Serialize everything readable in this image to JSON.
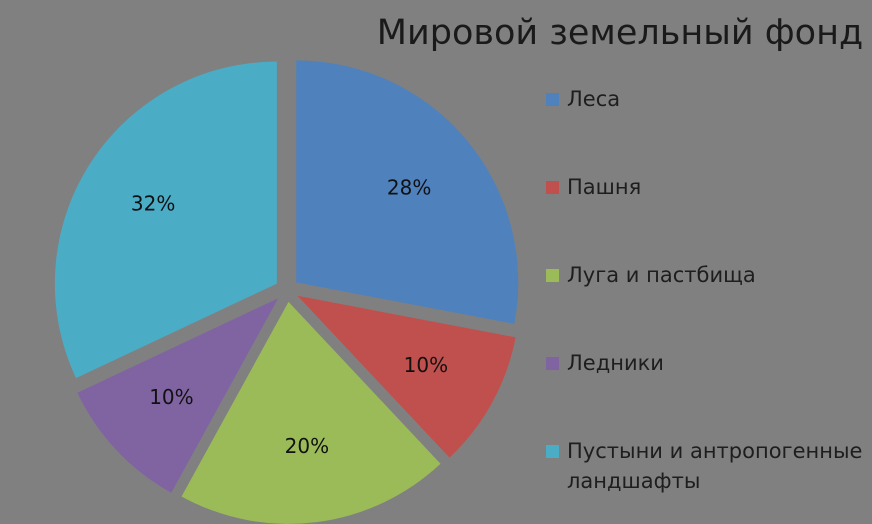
{
  "chart_data": {
    "type": "pie",
    "title": "Мировой земельный фонд",
    "categories": [
      "Леса",
      "Пашня",
      "Луга и пастбища",
      "Ледники",
      "Пустыни и антропогенные ландшафты"
    ],
    "values": [
      28,
      10,
      20,
      10,
      32
    ],
    "value_labels": [
      "28%",
      "10%",
      "20%",
      "10%",
      "32%"
    ],
    "colors": [
      "#4f81bd",
      "#c0504d",
      "#9bbb59",
      "#8064a2",
      "#4bacc6"
    ],
    "legend": "right"
  }
}
